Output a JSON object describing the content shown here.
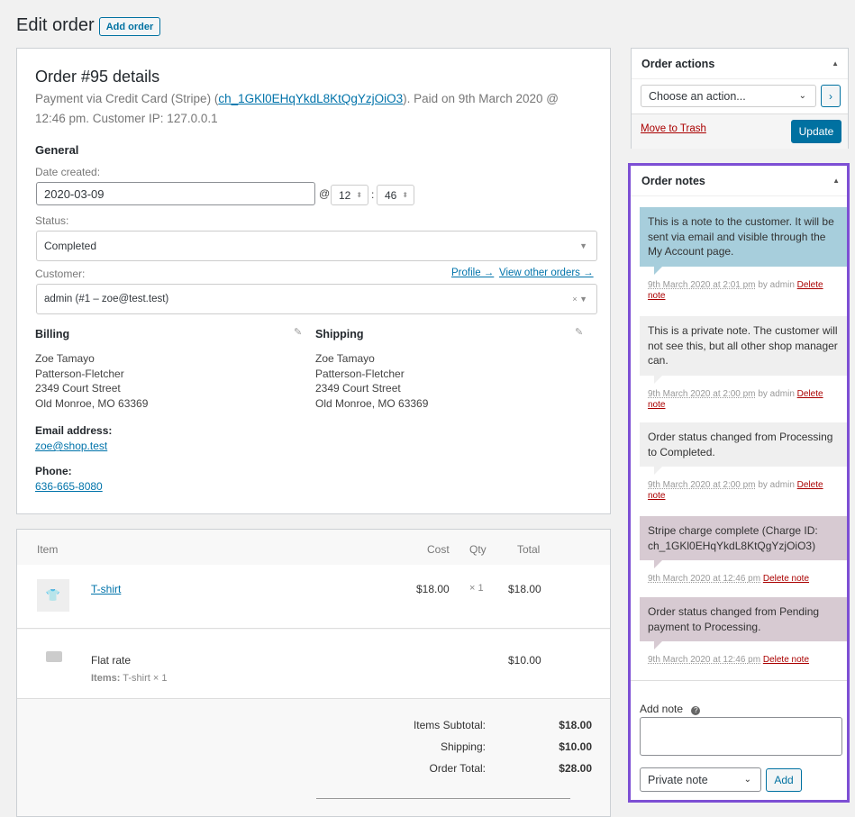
{
  "header": {
    "title": "Edit order",
    "add_button": "Add order"
  },
  "order": {
    "heading": "Order #95 details",
    "payment_prefix": "Payment via Credit Card (Stripe) (",
    "charge_id": "ch_1GKl0EHqYkdL8KtQgYzjOiO3",
    "payment_suffix": "). Paid on 9th March 2020 @ 12:46 pm. Customer IP: 127.0.0.1",
    "general": "General",
    "date_label": "Date created:",
    "date": "2020-03-09",
    "at": "@",
    "hour": "12",
    "colon": ":",
    "minute": "46",
    "status_label": "Status:",
    "status": "Completed",
    "customer_label": "Customer:",
    "profile_link": "Profile →",
    "other_orders_link": "View other orders →",
    "customer": "admin (#1 – zoe@test.test)",
    "billing": {
      "title": "Billing",
      "address": [
        "Zoe Tamayo",
        "Patterson-Fletcher",
        "2349 Court Street",
        "Old Monroe, MO 63369"
      ],
      "email_label": "Email address:",
      "email": "zoe@shop.test",
      "phone_label": "Phone:",
      "phone": "636-665-8080"
    },
    "shipping": {
      "title": "Shipping",
      "address": [
        "Zoe Tamayo",
        "Patterson-Fletcher",
        "2349 Court Street",
        "Old Monroe, MO 63369"
      ]
    }
  },
  "items": {
    "headers": [
      "Item",
      "Cost",
      "Qty",
      "Total"
    ],
    "product": {
      "name": "T-shirt",
      "cost": "$18.00",
      "qty": "× 1",
      "total": "$18.00"
    },
    "shipping": {
      "name": "Flat rate",
      "items_label": "Items:",
      "items": "T-shirt × 1",
      "total": "$10.00"
    },
    "totals": [
      {
        "label": "Items Subtotal:",
        "value": "$18.00"
      },
      {
        "label": "Shipping:",
        "value": "$10.00"
      },
      {
        "label": "Order Total:",
        "value": "$28.00"
      }
    ]
  },
  "actions": {
    "title": "Order actions",
    "select": "Choose an action...",
    "trash": "Move to Trash",
    "update": "Update"
  },
  "notes": {
    "title": "Order notes",
    "list": [
      {
        "kind": "customer",
        "text": "This is a note to the customer. It will be sent via email and visible through the My Account page.",
        "date": "9th March 2020 at 2:01 pm",
        "by": "by admin",
        "delete": "Delete note"
      },
      {
        "kind": "private",
        "text": "This is a private note. The customer will not see this, but all other shop manager can.",
        "date": "9th March 2020 at 2:00 pm",
        "by": "by admin",
        "delete": "Delete note"
      },
      {
        "kind": "private",
        "text": "Order status changed from Processing to Completed.",
        "date": "9th March 2020 at 2:00 pm",
        "by": "by admin",
        "delete": "Delete note"
      },
      {
        "kind": "system",
        "text": "Stripe charge complete (Charge ID: ch_1GKl0EHqYkdL8KtQgYzjOiO3)",
        "date": "9th March 2020 at 12:46 pm",
        "by": null,
        "delete": "Delete note"
      },
      {
        "kind": "system",
        "text": "Order status changed from Pending payment to Processing.",
        "date": "9th March 2020 at 12:46 pm",
        "by": null,
        "delete": "Delete note"
      }
    ],
    "add_label": "Add note",
    "type_select": "Private note",
    "add_button": "Add"
  }
}
